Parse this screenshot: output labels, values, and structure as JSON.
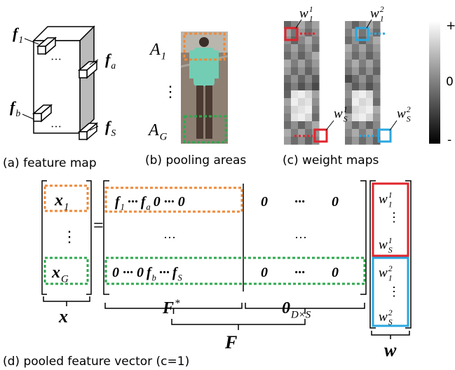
{
  "panel_a": {
    "caption": "(a) feature map",
    "labels": [
      {
        "base": "f",
        "sub": "1"
      },
      {
        "base": "f",
        "sub": "a"
      },
      {
        "base": "f",
        "sub": "b"
      },
      {
        "base": "f",
        "sub": "S"
      }
    ],
    "dots": [
      "···",
      "···"
    ]
  },
  "panel_b": {
    "caption": "(b) pooling areas",
    "labels": [
      {
        "base": "A",
        "sub": "1"
      },
      {
        "base": "A",
        "sub": "G"
      }
    ],
    "vdots": "⋮"
  },
  "panel_c": {
    "caption": "(c) weight maps",
    "labels": [
      {
        "base": "w",
        "sub": "1",
        "sup": "1"
      },
      {
        "base": "w",
        "sub": "S",
        "sup": "1"
      },
      {
        "base": "w",
        "sub": "1",
        "sup": "2"
      },
      {
        "base": "w",
        "sub": "S",
        "sup": "2"
      }
    ],
    "colorbar": {
      "max": "+",
      "mid": "0",
      "min": "-"
    }
  },
  "panel_d": {
    "caption": "(d) pooled feature vector (c=1)",
    "x_entries": [
      {
        "base": "x",
        "sub": "1"
      },
      "⋮",
      {
        "base": "x",
        "sub": "G"
      }
    ],
    "equals": "=",
    "matrix": {
      "left": [
        [
          {
            "base": "f",
            "sub": "1"
          },
          "···",
          {
            "base": "f",
            "sub": "a"
          },
          "0 ··· 0"
        ],
        [
          "···"
        ],
        [
          "0 ··· 0",
          {
            "base": "f",
            "sub": "b"
          },
          "···",
          {
            "base": "f",
            "sub": "S"
          }
        ]
      ],
      "right": [
        [
          "0",
          "···",
          "0"
        ],
        [
          "···"
        ],
        [
          "0",
          "···",
          "0"
        ]
      ]
    },
    "w_entries": [
      {
        "base": "w",
        "sub": "1",
        "sup": "1"
      },
      "⋮",
      {
        "base": "w",
        "sub": "S",
        "sup": "1"
      },
      {
        "base": "w",
        "sub": "1",
        "sup": "2"
      },
      "⋮",
      {
        "base": "w",
        "sub": "S",
        "sup": "2"
      }
    ],
    "brace_labels": {
      "x": "x",
      "F_star": {
        "base": "F",
        "sup": "*"
      },
      "zero": {
        "base": "0",
        "sub": "D×S"
      },
      "F": "F",
      "w": "w"
    }
  }
}
